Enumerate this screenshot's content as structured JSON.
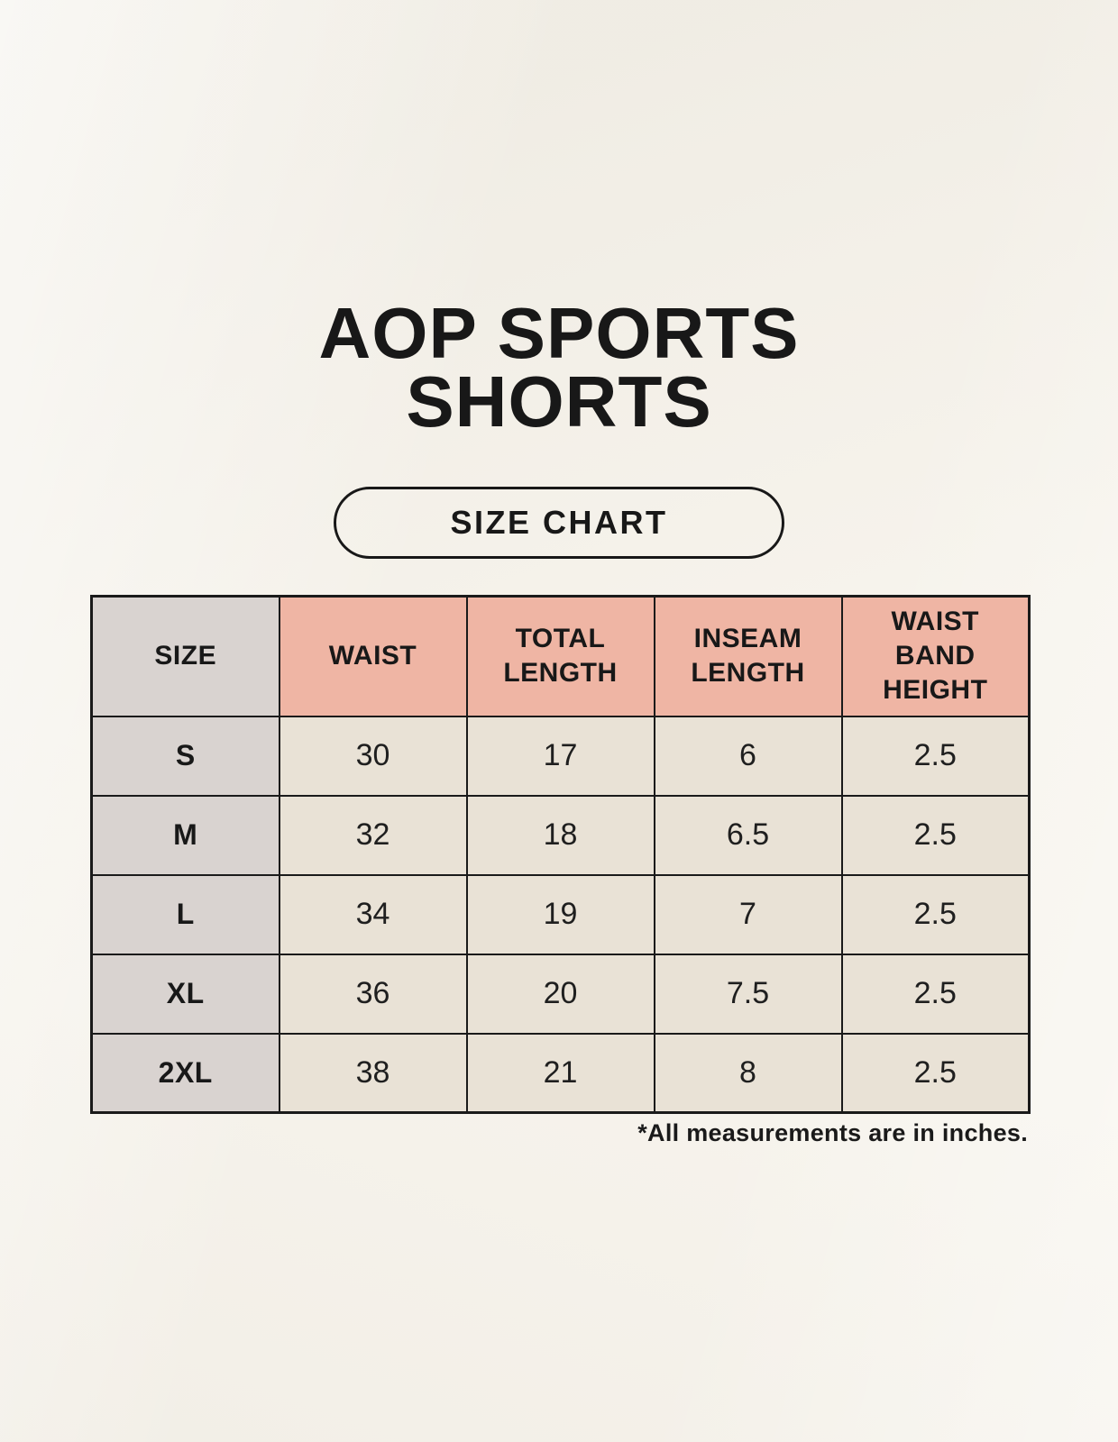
{
  "page": {
    "title_lines": [
      "AOP SPORTS",
      "SHORTS"
    ],
    "badge_label": "SIZE CHART",
    "footnote": "*All measurements are in inches."
  },
  "chart_data": {
    "type": "table",
    "title": "AOP SPORTS SHORTS",
    "subtitle": "SIZE CHART",
    "columns": [
      "SIZE",
      "WAIST",
      "TOTAL LENGTH",
      "INSEAM LENGTH",
      "WAIST BAND HEIGHT"
    ],
    "columns_display": [
      "SIZE",
      "WAIST",
      "TOTAL\nLENGTH",
      "INSEAM\nLENGTH",
      "WAIST\nBAND\nHEIGHT"
    ],
    "rows": [
      [
        "S",
        "30",
        "17",
        "6",
        "2.5"
      ],
      [
        "M",
        "32",
        "18",
        "6.5",
        "2.5"
      ],
      [
        "L",
        "34",
        "19",
        "7",
        "2.5"
      ],
      [
        "XL",
        "36",
        "20",
        "7.5",
        "2.5"
      ],
      [
        "2XL",
        "38",
        "21",
        "8",
        "2.5"
      ]
    ],
    "units": "inches",
    "grid": true,
    "legend_position": "none"
  },
  "colors": {
    "background": "#F7F4ED",
    "header_accent": "#EFB5A4",
    "size_column": "#D9D3D0",
    "data_cell": "#E9E2D6",
    "border": "#1A1A1A",
    "text": "#181818"
  }
}
